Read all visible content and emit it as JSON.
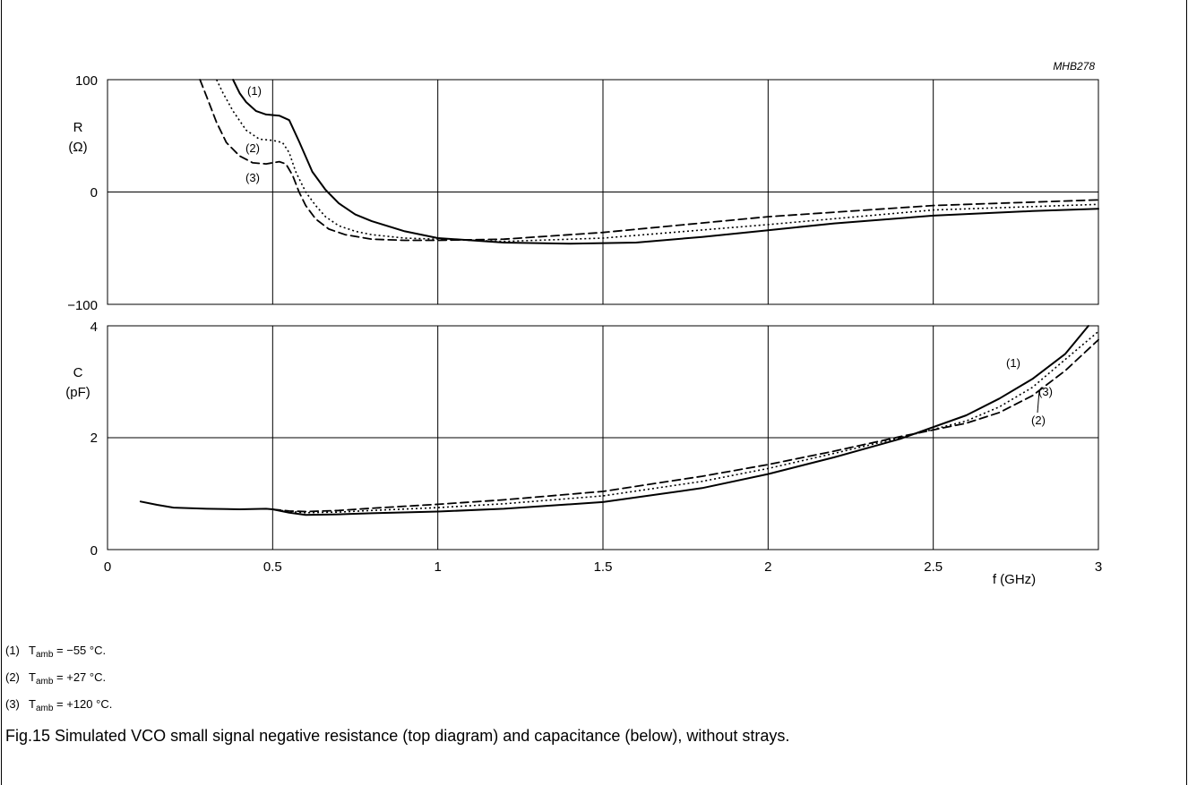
{
  "figure_code": "MHB278",
  "caption": "Fig.15  Simulated VCO small signal negative resistance (top diagram) and capacitance (below), without strays.",
  "notes": [
    {
      "num": "(1)",
      "sym": "T",
      "sub": "amb",
      "text": " = −55 °C."
    },
    {
      "num": "(2)",
      "sym": "T",
      "sub": "amb",
      "text": " = +27 °C."
    },
    {
      "num": "(3)",
      "sym": "T",
      "sub": "amb",
      "text": " = +120 °C."
    }
  ],
  "chart_data": [
    {
      "type": "line",
      "xlabel": "",
      "ylabel": "R",
      "yunit": "(Ω)",
      "xlim": [
        0,
        3
      ],
      "ylim": [
        -100,
        100
      ],
      "yticks": [
        "100",
        "0",
        "−100"
      ],
      "grid": true,
      "series": [
        {
          "name": "(1)",
          "style": "solid",
          "x": [
            0.38,
            0.4,
            0.42,
            0.45,
            0.48,
            0.52,
            0.55,
            0.58,
            0.62,
            0.66,
            0.7,
            0.75,
            0.8,
            0.9,
            1.0,
            1.2,
            1.4,
            1.6,
            1.8,
            2.0,
            2.2,
            2.5,
            2.8,
            3.0
          ],
          "y": [
            100,
            88,
            80,
            72,
            69,
            68,
            64,
            45,
            18,
            2,
            -10,
            -20,
            -26,
            -35,
            -41,
            -45,
            -46,
            -45,
            -40,
            -34,
            -28,
            -21,
            -17,
            -15
          ]
        },
        {
          "name": "(2)",
          "style": "dotted",
          "x": [
            0.33,
            0.35,
            0.38,
            0.42,
            0.46,
            0.5,
            0.53,
            0.55,
            0.57,
            0.6,
            0.63,
            0.66,
            0.7,
            0.75,
            0.8,
            0.9,
            1.0,
            1.2,
            1.5,
            2.0,
            2.5,
            3.0
          ],
          "y": [
            100,
            88,
            72,
            55,
            47,
            46,
            44,
            35,
            18,
            0,
            -12,
            -22,
            -30,
            -35,
            -38,
            -41,
            -42,
            -44,
            -41,
            -29,
            -16,
            -11
          ]
        },
        {
          "name": "(3)",
          "style": "dashed",
          "x": [
            0.28,
            0.3,
            0.33,
            0.36,
            0.4,
            0.44,
            0.48,
            0.52,
            0.54,
            0.56,
            0.58,
            0.6,
            0.63,
            0.67,
            0.72,
            0.8,
            0.9,
            1.0,
            1.2,
            1.5,
            2.0,
            2.5,
            3.0
          ],
          "y": [
            100,
            85,
            62,
            44,
            32,
            26,
            25,
            27,
            25,
            15,
            0,
            -12,
            -24,
            -33,
            -38,
            -42,
            -43,
            -43,
            -42,
            -36,
            -22,
            -12,
            -7
          ]
        }
      ],
      "annotations": [
        "(1)",
        "(2)",
        "(3)"
      ]
    },
    {
      "type": "line",
      "xlabel": "f (GHz)",
      "ylabel": "C",
      "yunit": "(pF)",
      "xlim": [
        0,
        3
      ],
      "ylim": [
        0,
        4
      ],
      "xticks": [
        "0",
        "0.5",
        "1",
        "1.5",
        "2",
        "2.5",
        "3"
      ],
      "yticks": [
        "4",
        "2",
        "0"
      ],
      "grid": true,
      "series": [
        {
          "name": "(1)",
          "style": "solid",
          "x": [
            0.1,
            0.15,
            0.2,
            0.3,
            0.4,
            0.48,
            0.5,
            0.55,
            0.6,
            0.7,
            0.8,
            1.0,
            1.2,
            1.5,
            1.8,
            2.0,
            2.2,
            2.4,
            2.6,
            2.7,
            2.8,
            2.9,
            2.97
          ],
          "y": [
            0.86,
            0.8,
            0.75,
            0.73,
            0.72,
            0.73,
            0.72,
            0.66,
            0.62,
            0.63,
            0.65,
            0.68,
            0.73,
            0.85,
            1.1,
            1.35,
            1.65,
            1.98,
            2.4,
            2.7,
            3.05,
            3.5,
            4.0
          ]
        },
        {
          "name": "(2)",
          "style": "dotted",
          "x": [
            0.5,
            0.55,
            0.6,
            0.7,
            0.8,
            1.0,
            1.2,
            1.5,
            1.8,
            2.0,
            2.2,
            2.4,
            2.6,
            2.7,
            2.8,
            2.9,
            3.0
          ],
          "y": [
            0.72,
            0.68,
            0.66,
            0.67,
            0.7,
            0.75,
            0.82,
            0.96,
            1.22,
            1.45,
            1.72,
            2.0,
            2.3,
            2.55,
            2.9,
            3.4,
            3.9
          ]
        },
        {
          "name": "(3)",
          "style": "dashed",
          "x": [
            0.5,
            0.55,
            0.6,
            0.7,
            0.8,
            1.0,
            1.2,
            1.5,
            1.8,
            2.0,
            2.2,
            2.4,
            2.6,
            2.7,
            2.8,
            2.9,
            3.0
          ],
          "y": [
            0.72,
            0.69,
            0.68,
            0.7,
            0.74,
            0.81,
            0.89,
            1.04,
            1.31,
            1.52,
            1.76,
            2.02,
            2.26,
            2.45,
            2.75,
            3.2,
            3.75
          ]
        }
      ],
      "annotations": [
        "(1)",
        "(3)",
        "(2)"
      ]
    }
  ]
}
